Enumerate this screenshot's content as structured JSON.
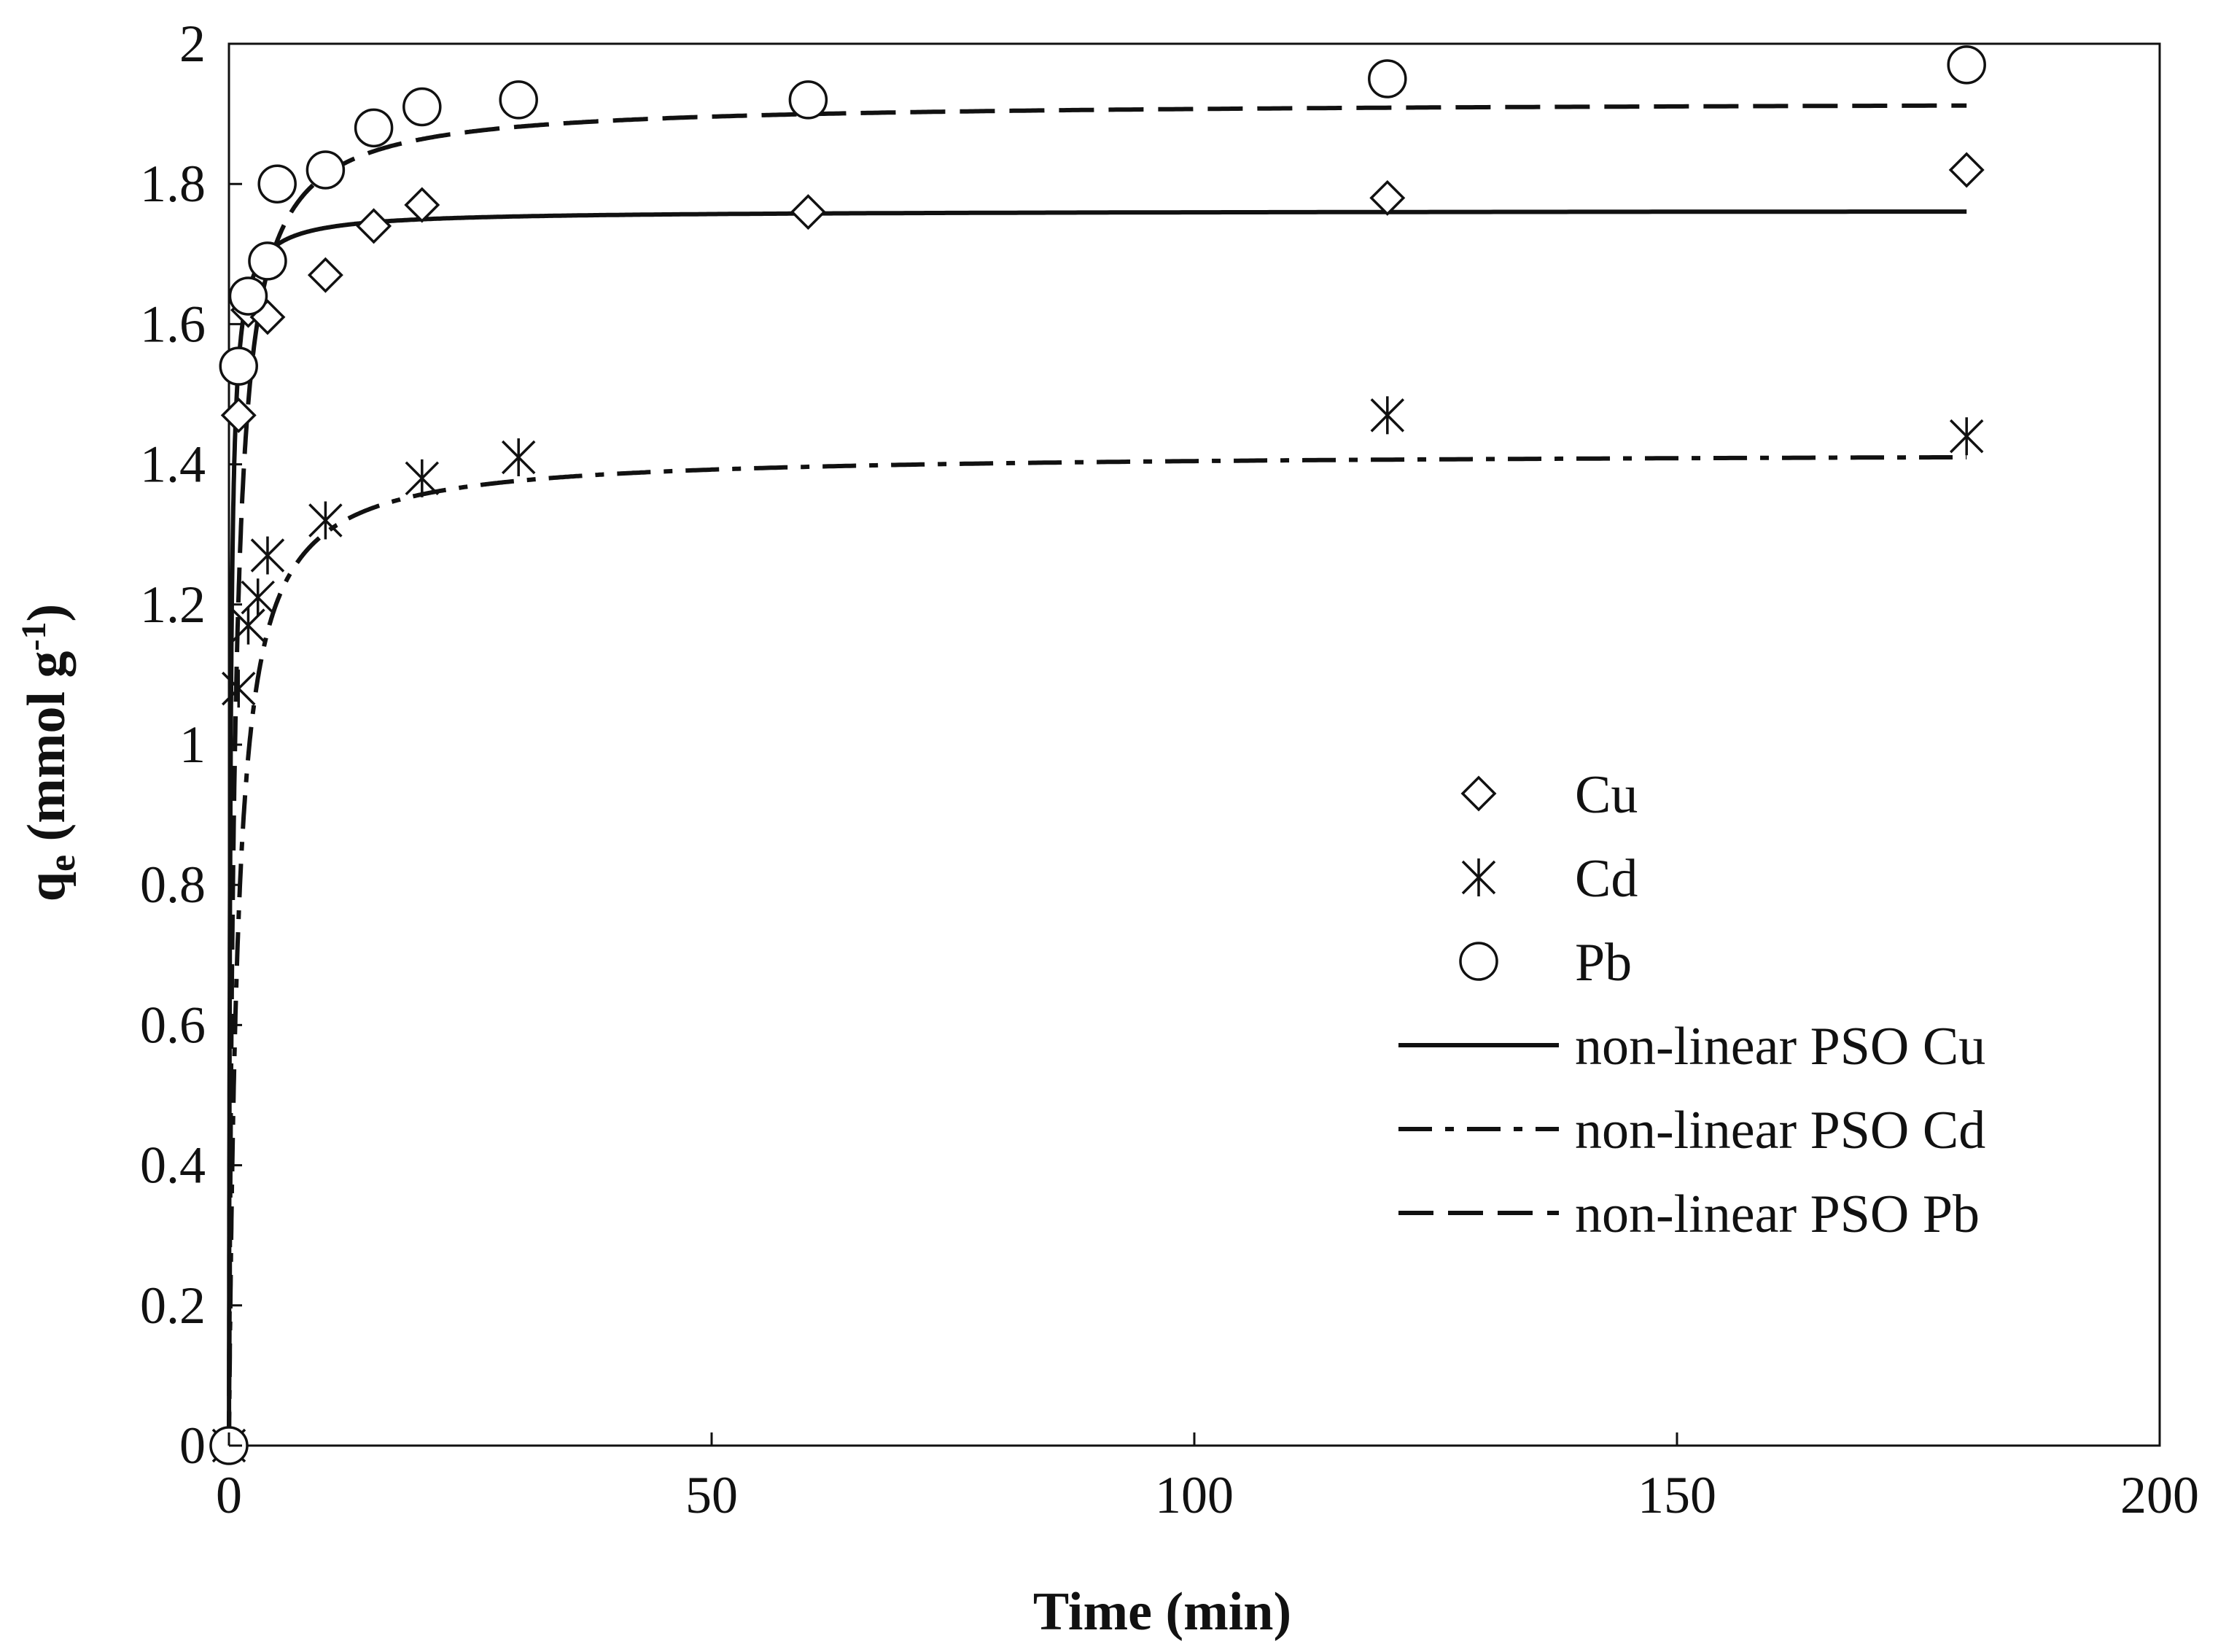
{
  "chart_data": {
    "type": "scatter",
    "title": "",
    "xlabel": "Time (min)",
    "ylabel": "q",
    "ylabel_subscript": "e",
    "ylabel_units_prefix": " (mmol g",
    "ylabel_units_exp": "-1",
    "ylabel_units_suffix": ")",
    "xlim": [
      0,
      200
    ],
    "ylim": [
      0,
      2
    ],
    "xticks": [
      0,
      50,
      100,
      150,
      200
    ],
    "yticks": [
      0,
      0.2,
      0.4,
      0.6,
      0.8,
      1,
      1.2,
      1.4,
      1.6,
      1.8,
      2
    ],
    "ytick_labels": [
      "0",
      "0.2",
      "0.4",
      "0.6",
      "0.8",
      "1",
      "1.2",
      "1.4",
      "1.6",
      "1.8",
      "2"
    ],
    "xtick_labels": [
      "0",
      "50",
      "100",
      "150",
      "200"
    ],
    "grid": false,
    "legend_position": "center-right",
    "series": [
      {
        "name": "Cu",
        "kind": "points",
        "marker": "diamond",
        "x": [
          0,
          1,
          2,
          4,
          10,
          15,
          20,
          60,
          120,
          180
        ],
        "y": [
          0,
          1.47,
          1.62,
          1.61,
          1.67,
          1.74,
          1.77,
          1.76,
          1.78,
          1.82
        ]
      },
      {
        "name": "Cd",
        "kind": "points",
        "marker": "asterisk",
        "x": [
          0,
          1,
          2,
          3,
          4,
          10,
          20,
          30,
          120,
          180
        ],
        "y": [
          0,
          1.08,
          1.17,
          1.21,
          1.27,
          1.32,
          1.38,
          1.41,
          1.47,
          1.44
        ]
      },
      {
        "name": "Pb",
        "kind": "points",
        "marker": "circle",
        "x": [
          0,
          1,
          2,
          4,
          5,
          10,
          15,
          20,
          30,
          60,
          120,
          180
        ],
        "y": [
          0,
          1.54,
          1.64,
          1.69,
          1.8,
          1.82,
          1.88,
          1.91,
          1.92,
          1.92,
          1.95,
          1.97
        ]
      },
      {
        "name": "non-linear PSO Cu",
        "kind": "line",
        "dash": "solid",
        "qe": 1.762,
        "k2": 4.0,
        "t_max": 180
      },
      {
        "name": "non-linear PSO Cd",
        "kind": "line",
        "dash": "dashdot",
        "qe": 1.417,
        "k2": 0.8,
        "t_max": 180
      },
      {
        "name": "non-linear PSO Pb",
        "kind": "line",
        "dash": "dashed",
        "qe": 1.918,
        "k2": 0.9,
        "t_max": 180
      }
    ]
  }
}
